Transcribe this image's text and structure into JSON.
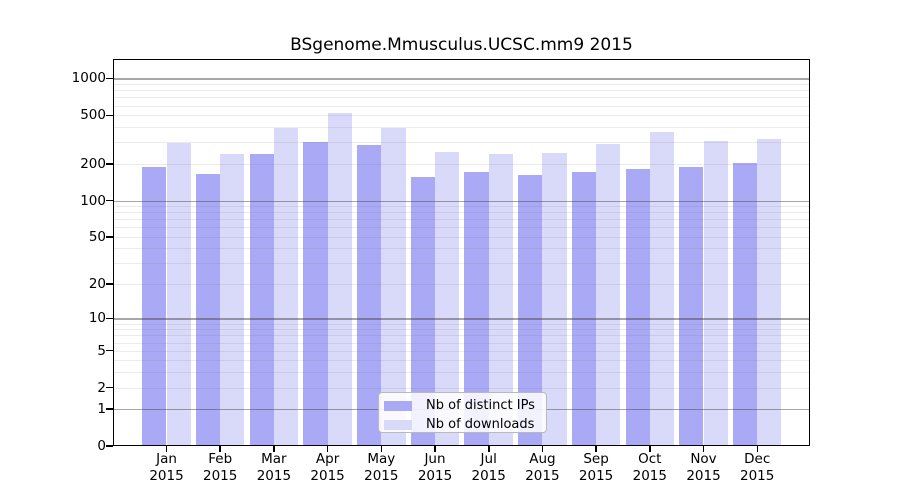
{
  "chart_data": {
    "type": "bar",
    "title": "BSgenome.Mmusculus.UCSC.mm9 2015",
    "categories": [
      "Jan",
      "Feb",
      "Mar",
      "Apr",
      "May",
      "Jun",
      "Jul",
      "Aug",
      "Sep",
      "Oct",
      "Nov",
      "Dec"
    ],
    "year": "2015",
    "series": [
      {
        "name": "Nb of distinct IPs",
        "color": "#a9a9f5",
        "values": [
          187,
          165,
          243,
          304,
          285,
          156,
          171,
          162,
          173,
          183,
          189,
          203
        ]
      },
      {
        "name": "Nb of downloads",
        "color": "#d9d9f9",
        "values": [
          294,
          239,
          394,
          518,
          394,
          249,
          239,
          245,
          290,
          365,
          307,
          318
        ]
      }
    ],
    "y_axis": {
      "scale": "log10(1+value)",
      "ticks": [
        0,
        1,
        2,
        5,
        10,
        20,
        50,
        100,
        200,
        500,
        1000
      ],
      "major_gridlines": [
        1,
        10,
        100,
        1000
      ],
      "minor_gridlines": [
        2,
        3,
        4,
        5,
        6,
        7,
        8,
        9,
        20,
        30,
        40,
        50,
        60,
        70,
        80,
        90,
        200,
        300,
        400,
        500,
        600,
        700,
        800,
        900
      ],
      "range_top": 1430
    },
    "legend_position": "bottom-center-inside",
    "grid": true,
    "colors": {
      "frame": "#000000",
      "major_grid": "#a6a6a6",
      "minor_grid": "#ececec",
      "legend_border": "#b9b9b9",
      "background": "#ffffff"
    }
  }
}
